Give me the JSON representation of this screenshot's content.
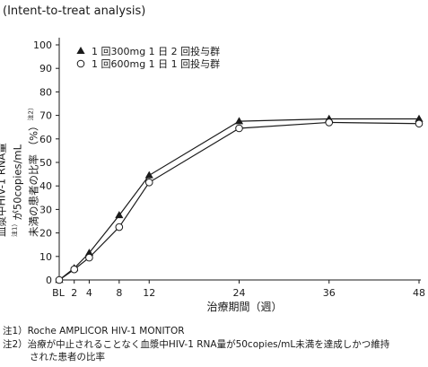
{
  "header": {
    "subtitle": "(Intent-to-treat analysis)"
  },
  "footnotes": {
    "note1": "注1）Roche AMPLICOR HIV-1 MONITOR",
    "note2_line1": "注2）治療が中止されることなく血漿中HIV-1 RNA量が50copies/mL未満を達成しかつ維持",
    "note2_line2": "された患者の比率"
  },
  "chart_data": {
    "type": "line",
    "title": "",
    "xlabel": "治療期間（週）",
    "ylabel_line1": "血漿中HIV-1 RNA量",
    "ylabel_note1": "注1）",
    "ylabel_line1b": "が50copies/mL",
    "ylabel_line2": "未満の患者の比率 （%）",
    "ylabel_note2": "注2）",
    "x": [
      0,
      2,
      4,
      8,
      12,
      24,
      36,
      48
    ],
    "x_tick_labels": [
      "BL",
      "2",
      "4",
      "8",
      "12",
      "24",
      "36",
      "48"
    ],
    "y_ticks": [
      0,
      10,
      20,
      30,
      40,
      50,
      60,
      70,
      80,
      90,
      100
    ],
    "xlim": [
      0,
      48
    ],
    "ylim": [
      0,
      100
    ],
    "grid": false,
    "legend_position": "top-left",
    "series": [
      {
        "name": "1 回300mg 1 日 2 回投与群",
        "marker": "filled-triangle",
        "values": [
          0,
          5,
          11.5,
          27.5,
          44.5,
          67.5,
          68.5,
          68.5
        ]
      },
      {
        "name": "1 回600mg 1 日 1 回投与群",
        "marker": "open-circle",
        "values": [
          0,
          4.5,
          9.5,
          22.5,
          41.5,
          64.5,
          67,
          66.5
        ]
      }
    ]
  }
}
